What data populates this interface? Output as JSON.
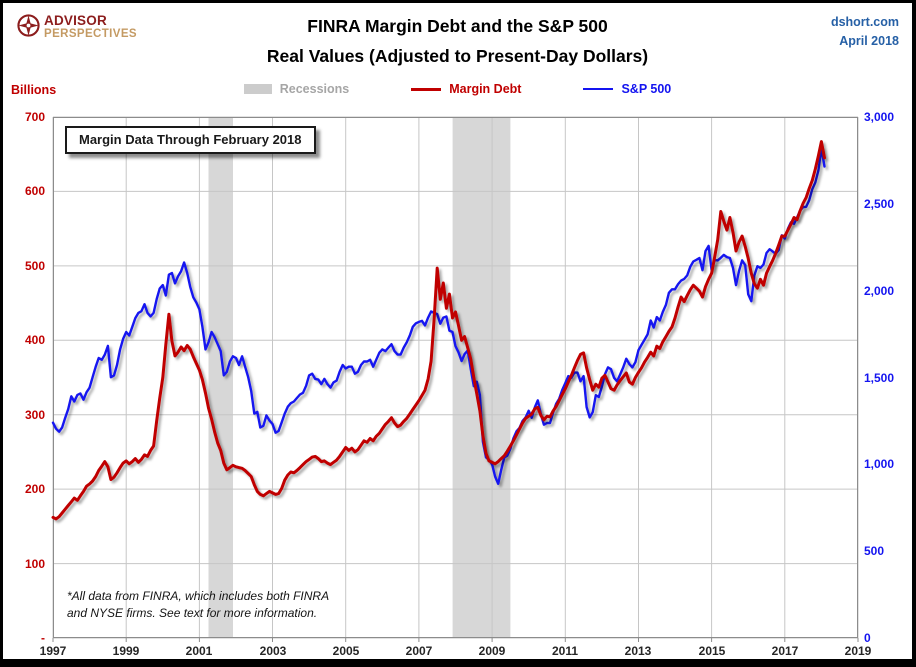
{
  "header": {
    "logo_line1": "ADVISOR",
    "logo_line2": "PERSPECTIVES",
    "title_line1": "FINRA Margin Debt and the S&P 500",
    "title_line2": "Real Values (Adjusted to Present-Day Dollars)",
    "source": "dshort.com",
    "date": "April 2018"
  },
  "left_axis_unit_label": "Billions",
  "annotation": "Margin Data Through February 2018",
  "footnote_line1": "*All data from FINRA, which includes both FINRA",
  "footnote_line2": "and NYSE firms. See text for more information.",
  "legend": [
    {
      "label": "Recessions",
      "text_color": "#a6a6a6",
      "swatch_color": "#cccccc",
      "type": "box"
    },
    {
      "label": "Margin Debt",
      "text_color": "#c00000",
      "swatch_color": "#c00000",
      "type": "line"
    },
    {
      "label": "S&P 500",
      "text_color": "#1414f0",
      "swatch_color": "#1414f0",
      "type": "line"
    }
  ],
  "chart_data": {
    "type": "line",
    "title": "FINRA Margin Debt and the S&P 500 — Real Values (Adjusted to Present-Day Dollars)",
    "x_domain": [
      1997,
      2019
    ],
    "x_ticks": [
      1997,
      1999,
      2001,
      2003,
      2005,
      2007,
      2009,
      2011,
      2013,
      2015,
      2017,
      2019
    ],
    "grid": true,
    "legend_position": "top",
    "left_axis": {
      "title": "Billions",
      "range": [
        0,
        700
      ],
      "color": "#c00000",
      "ticks": [
        {
          "label": "700",
          "value": 700
        },
        {
          "label": "600",
          "value": 600
        },
        {
          "label": "500",
          "value": 500
        },
        {
          "label": "400",
          "value": 400
        },
        {
          "label": "300",
          "value": 300
        },
        {
          "label": "200",
          "value": 200
        },
        {
          "label": "100",
          "value": 100
        },
        {
          "label": "-",
          "value": 0
        }
      ]
    },
    "right_axis": {
      "title": "S&P 500",
      "range": [
        0,
        3000
      ],
      "color": "#1414f0",
      "ticks": [
        {
          "label": "3,000",
          "value": 3000
        },
        {
          "label": "2,500",
          "value": 2500
        },
        {
          "label": "2,000",
          "value": 2000
        },
        {
          "label": "1,500",
          "value": 1500
        },
        {
          "label": "1,000",
          "value": 1000
        },
        {
          "label": "500",
          "value": 500
        },
        {
          "label": "0",
          "value": 0
        }
      ]
    },
    "recessions": [
      [
        2001.25,
        2001.92
      ],
      [
        2007.92,
        2009.5
      ]
    ],
    "recession_color": "#d7d7d7",
    "series": [
      {
        "name": "Margin Debt",
        "axis": "left",
        "color": "#c00000",
        "width": 3,
        "start_year": 1997,
        "points_per_year": 12,
        "values": [
          162,
          160,
          163,
          168,
          173,
          178,
          183,
          188,
          185,
          191,
          197,
          204,
          207,
          211,
          217,
          225,
          231,
          237,
          230,
          213,
          216,
          222,
          229,
          235,
          238,
          234,
          237,
          241,
          236,
          240,
          246,
          244,
          252,
          258,
          292,
          322,
          350,
          394,
          435,
          399,
          379,
          384,
          391,
          386,
          393,
          388,
          378,
          369,
          360,
          347,
          329,
          309,
          294,
          277,
          262,
          252,
          235,
          226,
          229,
          232,
          230,
          229,
          228,
          225,
          221,
          217,
          206,
          197,
          193,
          191,
          194,
          197,
          195,
          193,
          194,
          201,
          212,
          219,
          223,
          222,
          225,
          229,
          233,
          237,
          240,
          243,
          244,
          241,
          237,
          238,
          235,
          233,
          236,
          239,
          244,
          250,
          256,
          252,
          255,
          250,
          253,
          259,
          265,
          263,
          268,
          265,
          271,
          275,
          281,
          287,
          291,
          296,
          289,
          284,
          286,
          291,
          295,
          301,
          307,
          313,
          319,
          326,
          333,
          348,
          372,
          430,
          497,
          455,
          477,
          443,
          462,
          430,
          438,
          420,
          400,
          405,
          390,
          375,
          350,
          328,
          305,
          272,
          248,
          238,
          236,
          234,
          237,
          241,
          245,
          251,
          258,
          265,
          273,
          281,
          289,
          295,
          298,
          301,
          308,
          310,
          299,
          293,
          298,
          297,
          305,
          311,
          319,
          327,
          335,
          344,
          353,
          363,
          373,
          381,
          383,
          363,
          347,
          333,
          341,
          337,
          349,
          353,
          344,
          335,
          333,
          340,
          346,
          351,
          356,
          344,
          341,
          350,
          357,
          363,
          371,
          377,
          384,
          379,
          392,
          389,
          398,
          405,
          412,
          418,
          430,
          445,
          458,
          452,
          460,
          468,
          474,
          470,
          466,
          458,
          472,
          482,
          490,
          512,
          535,
          573,
          560,
          548,
          565,
          545,
          520,
          532,
          540,
          526,
          510,
          490,
          476,
          470,
          482,
          474,
          490,
          499,
          507,
          517,
          528,
          540,
          540,
          548,
          556,
          565,
          562,
          574,
          584,
          592,
          604,
          615,
          630,
          648,
          667,
          645
        ]
      },
      {
        "name": "S&P 500",
        "axis": "right",
        "color": "#1414f0",
        "width": 2.4,
        "start_year": 1997,
        "points_per_year": 12,
        "values": [
          1240,
          1205,
          1188,
          1212,
          1268,
          1318,
          1392,
          1362,
          1400,
          1408,
          1372,
          1415,
          1442,
          1502,
          1562,
          1612,
          1602,
          1632,
          1682,
          1502,
          1512,
          1572,
          1662,
          1722,
          1762,
          1742,
          1792,
          1842,
          1872,
          1882,
          1922,
          1872,
          1852,
          1872,
          1952,
          2012,
          2032,
          1972,
          2092,
          2102,
          2042,
          2082,
          2112,
          2162,
          2102,
          2022,
          1962,
          1932,
          1892,
          1792,
          1662,
          1702,
          1762,
          1732,
          1692,
          1652,
          1512,
          1532,
          1592,
          1622,
          1612,
          1572,
          1622,
          1562,
          1502,
          1422,
          1292,
          1302,
          1212,
          1222,
          1282,
          1252,
          1232,
          1182,
          1192,
          1242,
          1292,
          1332,
          1352,
          1362,
          1382,
          1402,
          1412,
          1452,
          1512,
          1522,
          1492,
          1488,
          1462,
          1492,
          1462,
          1442,
          1472,
          1482,
          1532,
          1572,
          1552,
          1562,
          1562,
          1522,
          1532,
          1572,
          1592,
          1592,
          1602,
          1562,
          1602,
          1642,
          1662,
          1652,
          1672,
          1692,
          1652,
          1632,
          1632,
          1672,
          1702,
          1742,
          1792,
          1812,
          1820,
          1826,
          1800,
          1845,
          1880,
          1872,
          1865,
          1810,
          1845,
          1851,
          1770,
          1762,
          1680,
          1645,
          1595,
          1635,
          1655,
          1550,
          1450,
          1475,
          1400,
          1130,
          1040,
          1025,
          1000,
          930,
          888,
          968,
          1040,
          1050,
          1090,
          1150,
          1190,
          1210,
          1250,
          1270,
          1308,
          1268,
          1328,
          1368,
          1288,
          1228,
          1238,
          1238,
          1298,
          1348,
          1378,
          1428,
          1468,
          1508,
          1498,
          1528,
          1528,
          1478,
          1508,
          1330,
          1270,
          1300,
          1398,
          1388,
          1448,
          1518,
          1558,
          1548,
          1498,
          1478,
          1518,
          1558,
          1608,
          1578,
          1558,
          1588,
          1658,
          1688,
          1718,
          1748,
          1828,
          1788,
          1848,
          1828,
          1878,
          1918,
          1988,
          2008,
          2008,
          2038,
          2058,
          2068,
          2088,
          2138,
          2168,
          2178,
          2188,
          2118,
          2228,
          2258,
          2119,
          2176,
          2174,
          2189,
          2206,
          2193,
          2188,
          2131,
          2032,
          2115,
          2174,
          2147,
          1979,
          1940,
          2087,
          2141,
          2131,
          2150,
          2217,
          2239,
          2226,
          2212,
          2234,
          2319,
          2300,
          2356,
          2393,
          2385,
          2421,
          2461,
          2481,
          2483,
          2521,
          2585,
          2623,
          2693,
          2820,
          2715
        ]
      }
    ]
  }
}
